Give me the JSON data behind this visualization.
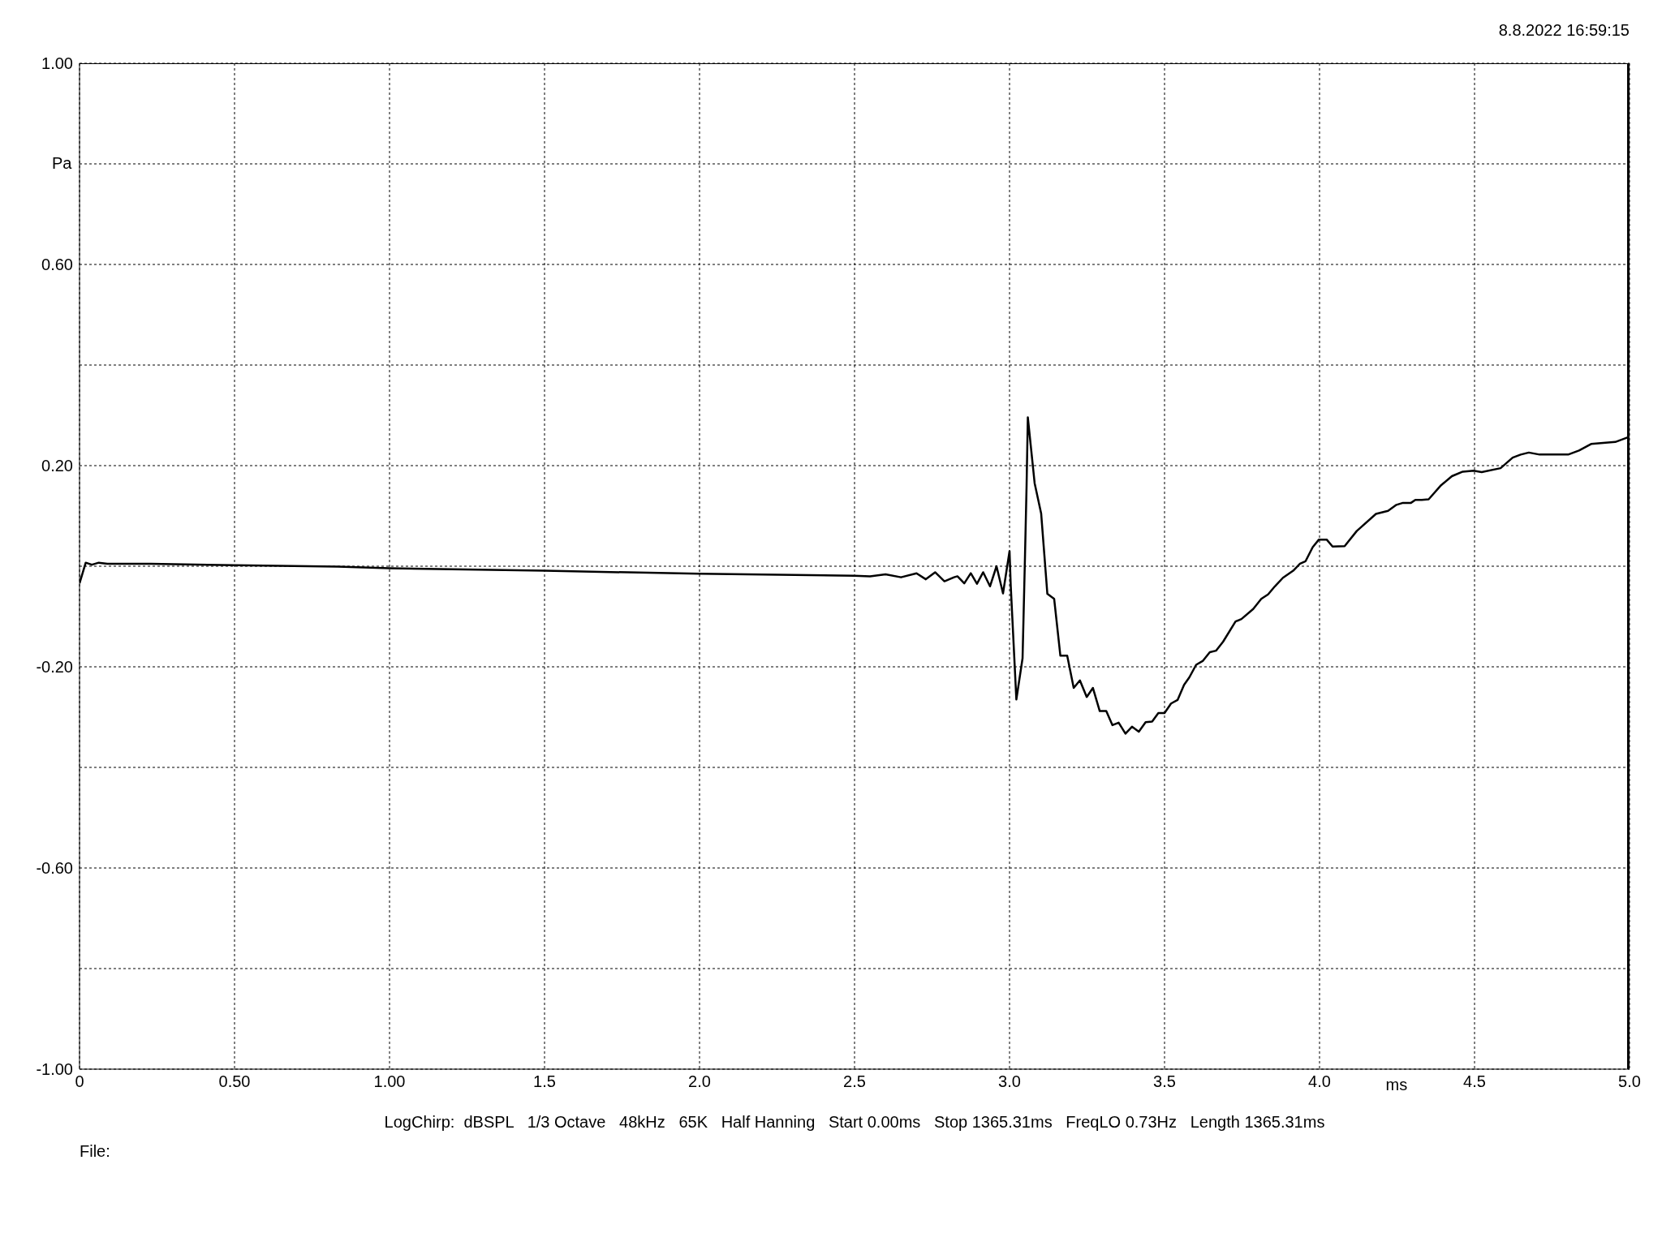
{
  "chart_data": {
    "type": "line",
    "xlabel": "ms",
    "ylabel": "Pa",
    "annotations": [
      "8.8.2022 16:59:15",
      "LogChirp:  dBSPL   1/3 Octave   48kHz   65K   Half Hanning   Start 0.00ms   Stop 1365.31ms   FreqLO 0.73Hz   Length 1365.31ms",
      "File:"
    ],
    "xlim": [
      0,
      5
    ],
    "ylim": [
      -1,
      1
    ],
    "xticks": [
      0,
      {
        "value": 0.5,
        "label": "0.50"
      },
      {
        "value": 1,
        "label": "1.00"
      },
      1.5,
      {
        "value": 2,
        "label": "2.0"
      },
      2.5,
      {
        "value": 3,
        "label": "3.0"
      },
      3.5,
      {
        "value": 4,
        "label": "4.0"
      },
      4.5,
      {
        "value": 5,
        "label": "5.0"
      }
    ],
    "yticks": [
      {
        "value": 1,
        "label": "1.00"
      },
      {
        "value": 0.8,
        "label": null
      },
      {
        "value": 0.6,
        "label": "0.60"
      },
      {
        "value": 0.4,
        "label": null
      },
      {
        "value": 0.2,
        "label": "0.20"
      },
      {
        "value": 0,
        "label": null
      },
      {
        "value": -0.2,
        "label": "-0.20"
      },
      {
        "value": -0.4,
        "label": null
      },
      {
        "value": -0.6,
        "label": "-0.60"
      },
      {
        "value": -0.8,
        "label": null
      },
      {
        "value": -1,
        "label": "-1.00"
      }
    ],
    "grid": true,
    "marker": "none",
    "line_style": "solid",
    "series": [
      {
        "color": "#000000",
        "x": [
          0,
          0.02,
          0.04,
          0.062,
          0.09,
          0.23,
          0.5,
          0.833,
          1.0,
          1.5,
          2.0,
          2.5,
          2.55,
          2.6,
          2.65,
          2.7,
          2.73,
          2.76,
          2.79,
          2.821,
          2.832,
          2.854,
          2.875,
          2.895,
          2.915,
          2.937,
          2.958,
          2.979,
          3.0,
          3.004,
          3.022,
          3.042,
          3.05,
          3.055,
          3.059,
          3.081,
          3.102,
          3.122,
          3.144,
          3.164,
          3.186,
          3.207,
          3.227,
          3.249,
          3.269,
          3.291,
          3.312,
          3.332,
          3.352,
          3.374,
          3.395,
          3.417,
          3.439,
          3.46,
          3.48,
          3.5,
          3.521,
          3.542,
          3.563,
          3.58,
          3.602,
          3.624,
          3.646,
          3.666,
          3.689,
          3.729,
          3.748,
          3.786,
          3.812,
          3.834,
          3.856,
          3.882,
          3.915,
          3.937,
          3.955,
          3.978,
          3.998,
          4.023,
          4.042,
          4.081,
          4.12,
          4.182,
          4.221,
          4.248,
          4.269,
          4.295,
          4.309,
          4.33,
          4.352,
          4.392,
          4.427,
          4.462,
          4.497,
          4.523,
          4.584,
          4.623,
          4.649,
          4.675,
          4.71,
          4.802,
          4.837,
          4.876,
          4.954,
          4.998
        ],
        "values": [
          -0.034,
          0.007,
          0.003,
          0.007,
          0.005,
          0.005,
          0.002,
          -0.001,
          -0.004,
          -0.009,
          -0.015,
          -0.019,
          -0.02,
          -0.016,
          -0.022,
          -0.014,
          -0.026,
          -0.012,
          -0.03,
          -0.022,
          -0.02,
          -0.034,
          -0.014,
          -0.035,
          -0.012,
          -0.04,
          0.0,
          -0.054,
          0.03,
          -0.04,
          -0.265,
          -0.183,
          0.023,
          0.16,
          0.296,
          0.165,
          0.105,
          -0.055,
          -0.065,
          -0.178,
          -0.178,
          -0.242,
          -0.227,
          -0.26,
          -0.242,
          -0.288,
          -0.288,
          -0.316,
          -0.311,
          -0.333,
          -0.319,
          -0.329,
          -0.31,
          -0.309,
          -0.292,
          -0.292,
          -0.273,
          -0.266,
          -0.236,
          -0.221,
          -0.196,
          -0.188,
          -0.171,
          -0.168,
          -0.15,
          -0.11,
          -0.105,
          -0.085,
          -0.065,
          -0.056,
          -0.04,
          -0.023,
          -0.009,
          0.005,
          0.01,
          0.038,
          0.053,
          0.053,
          0.039,
          0.04,
          0.07,
          0.104,
          0.11,
          0.122,
          0.126,
          0.126,
          0.132,
          0.132,
          0.133,
          0.161,
          0.179,
          0.188,
          0.19,
          0.187,
          0.195,
          0.216,
          0.222,
          0.226,
          0.222,
          0.222,
          0.23,
          0.243,
          0.247,
          0.257
        ]
      }
    ]
  }
}
